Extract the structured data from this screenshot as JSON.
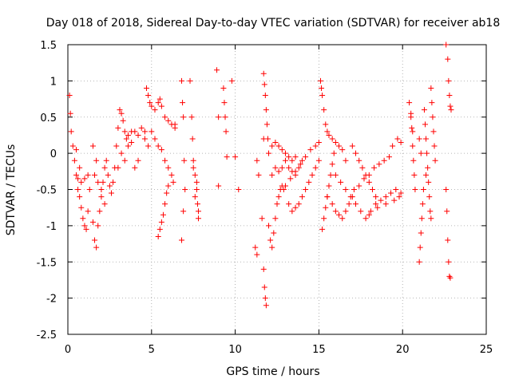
{
  "chart_data": {
    "type": "scatter",
    "title": "Day 018 of 2018, Sidereal Day-to-day VTEC variation (SDTVAR) for receiver ab18",
    "xlabel": "GPS time / hours",
    "ylabel": "SDTVAR / TECUs",
    "xlim": [
      0,
      25
    ],
    "ylim": [
      -2.5,
      1.5
    ],
    "xticks": [
      0,
      5,
      10,
      15,
      20,
      25
    ],
    "xtick_labels": [
      "0",
      "5",
      "10",
      "15",
      "20",
      "25"
    ],
    "yticks": [
      -2.5,
      -2,
      -1.5,
      -1,
      -0.5,
      0,
      0.5,
      1,
      1.5
    ],
    "ytick_labels": [
      "-2.5",
      "-2",
      "-1.5",
      "-1",
      "-0.5",
      "0",
      "0.5",
      "1",
      "1.5"
    ],
    "grid": true,
    "marker": "+",
    "color": "#ff0000",
    "series": [
      {
        "name": "SDTVAR",
        "points": [
          [
            0.1,
            0.8
          ],
          [
            0.15,
            0.55
          ],
          [
            0.2,
            0.3
          ],
          [
            0.3,
            0.1
          ],
          [
            0.4,
            -0.1
          ],
          [
            0.5,
            -0.3
          ],
          [
            0.6,
            -0.5
          ],
          [
            0.7,
            -0.6
          ],
          [
            0.8,
            -0.75
          ],
          [
            0.9,
            -0.9
          ],
          [
            1.0,
            -1.0
          ],
          [
            1.1,
            -1.05
          ],
          [
            1.2,
            -0.8
          ],
          [
            1.3,
            -0.5
          ],
          [
            0.6,
            -0.35
          ],
          [
            0.8,
            -0.4
          ],
          [
            1.0,
            -0.35
          ],
          [
            1.2,
            -0.3
          ],
          [
            0.5,
            0.05
          ],
          [
            0.7,
            -0.2
          ],
          [
            1.5,
            -0.95
          ],
          [
            1.6,
            -1.2
          ],
          [
            1.7,
            -1.3
          ],
          [
            1.8,
            -1.0
          ],
          [
            1.9,
            -0.8
          ],
          [
            2.0,
            -0.6
          ],
          [
            2.1,
            -0.4
          ],
          [
            2.2,
            -0.2
          ],
          [
            2.3,
            -0.1
          ],
          [
            2.4,
            -0.3
          ],
          [
            2.5,
            -0.45
          ],
          [
            2.6,
            -0.55
          ],
          [
            1.6,
            -0.3
          ],
          [
            1.8,
            -0.4
          ],
          [
            2.0,
            -0.5
          ],
          [
            2.2,
            -0.7
          ],
          [
            1.5,
            0.1
          ],
          [
            1.7,
            -0.1
          ],
          [
            2.7,
            -0.4
          ],
          [
            2.8,
            -0.2
          ],
          [
            2.9,
            0.1
          ],
          [
            3.0,
            0.35
          ],
          [
            3.1,
            0.6
          ],
          [
            3.2,
            0.55
          ],
          [
            3.3,
            0.45
          ],
          [
            3.4,
            0.3
          ],
          [
            3.5,
            0.2
          ],
          [
            3.6,
            0.25
          ],
          [
            3.8,
            0.3
          ],
          [
            4.0,
            0.3
          ],
          [
            4.2,
            0.25
          ],
          [
            4.4,
            0.35
          ],
          [
            4.6,
            0.3
          ],
          [
            3.2,
            0.0
          ],
          [
            3.4,
            -0.1
          ],
          [
            3.6,
            0.1
          ],
          [
            3.8,
            0.15
          ],
          [
            4.0,
            -0.2
          ],
          [
            4.2,
            -0.1
          ],
          [
            3.0,
            -0.2
          ],
          [
            4.7,
            0.9
          ],
          [
            4.8,
            0.8
          ],
          [
            4.9,
            0.7
          ],
          [
            5.0,
            0.65
          ],
          [
            5.2,
            0.6
          ],
          [
            5.4,
            0.7
          ],
          [
            5.5,
            0.75
          ],
          [
            5.6,
            0.65
          ],
          [
            5.8,
            0.5
          ],
          [
            6.0,
            0.45
          ],
          [
            6.2,
            0.4
          ],
          [
            6.4,
            0.4
          ],
          [
            5.0,
            0.3
          ],
          [
            5.2,
            0.2
          ],
          [
            5.4,
            0.1
          ],
          [
            5.6,
            0.05
          ],
          [
            5.8,
            -0.1
          ],
          [
            6.0,
            -0.2
          ],
          [
            6.2,
            -0.3
          ],
          [
            6.3,
            -0.4
          ],
          [
            5.4,
            -1.15
          ],
          [
            5.5,
            -1.05
          ],
          [
            5.6,
            -0.95
          ],
          [
            5.7,
            -0.85
          ],
          [
            5.8,
            -0.7
          ],
          [
            5.9,
            -0.55
          ],
          [
            6.0,
            -0.45
          ],
          [
            4.8,
            0.1
          ],
          [
            4.6,
            0.2
          ],
          [
            6.4,
            0.35
          ],
          [
            6.8,
            1.0
          ],
          [
            6.85,
            0.7
          ],
          [
            6.9,
            0.5
          ],
          [
            6.95,
            -0.1
          ],
          [
            6.8,
            -1.2
          ],
          [
            6.9,
            -0.8
          ],
          [
            7.0,
            -0.5
          ],
          [
            7.3,
            1.0
          ],
          [
            7.4,
            0.5
          ],
          [
            7.45,
            0.2
          ],
          [
            7.5,
            -0.1
          ],
          [
            7.6,
            -0.3
          ],
          [
            7.7,
            -0.5
          ],
          [
            7.75,
            -0.7
          ],
          [
            7.8,
            -0.9
          ],
          [
            7.6,
            -0.6
          ],
          [
            7.7,
            -0.4
          ],
          [
            7.8,
            -0.8
          ],
          [
            7.5,
            -0.2
          ],
          [
            8.9,
            1.15
          ],
          [
            9.0,
            0.5
          ],
          [
            9.0,
            -0.45
          ],
          [
            9.3,
            0.9
          ],
          [
            9.35,
            0.7
          ],
          [
            9.4,
            0.5
          ],
          [
            9.45,
            0.3
          ],
          [
            9.5,
            -0.05
          ],
          [
            9.8,
            1.0
          ],
          [
            10.0,
            -0.05
          ],
          [
            10.2,
            -0.5
          ],
          [
            11.2,
            -1.3
          ],
          [
            11.3,
            -1.4
          ],
          [
            11.3,
            -0.1
          ],
          [
            11.4,
            -0.3
          ],
          [
            11.6,
            -0.9
          ],
          [
            11.7,
            -1.6
          ],
          [
            11.75,
            -1.85
          ],
          [
            11.8,
            -2.0
          ],
          [
            11.85,
            -2.1
          ],
          [
            11.7,
            1.1
          ],
          [
            11.75,
            0.95
          ],
          [
            11.8,
            0.8
          ],
          [
            11.85,
            0.6
          ],
          [
            11.9,
            0.4
          ],
          [
            11.95,
            0.2
          ],
          [
            12.0,
            0.0
          ],
          [
            11.7,
            0.2
          ],
          [
            12.0,
            -1.0
          ],
          [
            12.1,
            -1.2
          ],
          [
            12.2,
            -1.3
          ],
          [
            12.3,
            -1.1
          ],
          [
            12.4,
            -0.9
          ],
          [
            12.5,
            -0.7
          ],
          [
            12.6,
            -0.6
          ],
          [
            12.7,
            -0.5
          ],
          [
            12.8,
            -0.45
          ],
          [
            12.9,
            -0.5
          ],
          [
            13.0,
            -0.45
          ],
          [
            12.2,
            -0.3
          ],
          [
            12.4,
            -0.2
          ],
          [
            12.6,
            -0.25
          ],
          [
            12.8,
            -0.2
          ],
          [
            13.0,
            -0.1
          ],
          [
            13.2,
            -0.2
          ],
          [
            13.4,
            -0.25
          ],
          [
            13.6,
            -0.3
          ],
          [
            13.8,
            -0.2
          ],
          [
            14.0,
            -0.1
          ],
          [
            12.2,
            0.1
          ],
          [
            12.4,
            0.15
          ],
          [
            12.6,
            0.1
          ],
          [
            12.8,
            0.05
          ],
          [
            13.0,
            0.0
          ],
          [
            13.2,
            -0.05
          ],
          [
            13.4,
            -0.1
          ],
          [
            13.6,
            -0.05
          ],
          [
            13.2,
            -0.7
          ],
          [
            13.4,
            -0.8
          ],
          [
            13.6,
            -0.75
          ],
          [
            13.8,
            -0.7
          ],
          [
            14.0,
            -0.6
          ],
          [
            14.2,
            -0.5
          ],
          [
            14.4,
            -0.4
          ],
          [
            14.6,
            -0.3
          ],
          [
            14.8,
            -0.2
          ],
          [
            15.0,
            -0.1
          ],
          [
            13.0,
            -0.45
          ],
          [
            13.3,
            -0.35
          ],
          [
            13.6,
            -0.25
          ],
          [
            13.9,
            -0.15
          ],
          [
            14.2,
            -0.05
          ],
          [
            14.5,
            0.05
          ],
          [
            14.8,
            0.1
          ],
          [
            15.0,
            0.15
          ],
          [
            15.1,
            1.0
          ],
          [
            15.15,
            0.9
          ],
          [
            15.2,
            0.8
          ],
          [
            15.3,
            0.6
          ],
          [
            15.4,
            0.4
          ],
          [
            15.5,
            0.3
          ],
          [
            15.6,
            0.25
          ],
          [
            15.8,
            0.2
          ],
          [
            16.0,
            0.15
          ],
          [
            16.2,
            0.1
          ],
          [
            16.4,
            0.05
          ],
          [
            16.6,
            -0.1
          ],
          [
            15.2,
            -1.05
          ],
          [
            15.3,
            -0.9
          ],
          [
            15.4,
            -0.75
          ],
          [
            15.5,
            -0.6
          ],
          [
            15.6,
            -0.45
          ],
          [
            15.7,
            -0.3
          ],
          [
            15.8,
            -0.15
          ],
          [
            15.9,
            0.0
          ],
          [
            15.5,
            -0.6
          ],
          [
            15.8,
            -0.7
          ],
          [
            16.0,
            -0.8
          ],
          [
            16.2,
            -0.85
          ],
          [
            16.4,
            -0.9
          ],
          [
            16.6,
            -0.8
          ],
          [
            16.8,
            -0.7
          ],
          [
            17.0,
            -0.6
          ],
          [
            16.0,
            -0.3
          ],
          [
            16.3,
            -0.4
          ],
          [
            16.6,
            -0.5
          ],
          [
            16.9,
            -0.6
          ],
          [
            17.2,
            -0.7
          ],
          [
            17.5,
            -0.8
          ],
          [
            17.8,
            -0.9
          ],
          [
            18.1,
            -0.8
          ],
          [
            17.0,
            0.1
          ],
          [
            17.2,
            0.0
          ],
          [
            17.4,
            -0.1
          ],
          [
            17.6,
            -0.2
          ],
          [
            17.8,
            -0.3
          ],
          [
            18.0,
            -0.4
          ],
          [
            18.2,
            -0.5
          ],
          [
            18.4,
            -0.6
          ],
          [
            17.1,
            -0.5
          ],
          [
            17.4,
            -0.45
          ],
          [
            17.7,
            -0.35
          ],
          [
            18.0,
            -0.3
          ],
          [
            18.3,
            -0.2
          ],
          [
            18.6,
            -0.15
          ],
          [
            18.9,
            -0.1
          ],
          [
            19.2,
            -0.05
          ],
          [
            18.4,
            -0.7
          ],
          [
            18.7,
            -0.65
          ],
          [
            19.0,
            -0.6
          ],
          [
            19.3,
            -0.55
          ],
          [
            19.6,
            -0.5
          ],
          [
            19.8,
            -0.6
          ],
          [
            19.4,
            0.1
          ],
          [
            19.7,
            0.2
          ],
          [
            19.9,
            0.15
          ],
          [
            18.0,
            -0.85
          ],
          [
            18.5,
            -0.75
          ],
          [
            19.0,
            -0.7
          ],
          [
            19.5,
            -0.65
          ],
          [
            19.9,
            -0.55
          ],
          [
            20.4,
            0.7
          ],
          [
            20.5,
            0.55
          ],
          [
            20.55,
            0.35
          ],
          [
            20.6,
            0.1
          ],
          [
            20.65,
            -0.1
          ],
          [
            20.7,
            -0.3
          ],
          [
            20.75,
            -0.5
          ],
          [
            20.5,
            0.5
          ],
          [
            20.6,
            0.3
          ],
          [
            21.0,
            -1.5
          ],
          [
            21.05,
            -1.3
          ],
          [
            21.1,
            -1.1
          ],
          [
            21.15,
            -0.9
          ],
          [
            21.2,
            -0.7
          ],
          [
            21.25,
            -0.5
          ],
          [
            21.0,
            0.2
          ],
          [
            21.1,
            0.0
          ],
          [
            21.3,
            0.6
          ],
          [
            21.35,
            0.4
          ],
          [
            21.4,
            0.2
          ],
          [
            21.45,
            0.0
          ],
          [
            21.5,
            -0.2
          ],
          [
            21.55,
            -0.4
          ],
          [
            21.6,
            -0.6
          ],
          [
            21.65,
            -0.8
          ],
          [
            21.7,
            -0.9
          ],
          [
            21.4,
            -0.3
          ],
          [
            21.7,
            0.9
          ],
          [
            21.75,
            0.7
          ],
          [
            21.8,
            0.5
          ],
          [
            21.85,
            0.3
          ],
          [
            21.9,
            0.1
          ],
          [
            21.95,
            -0.1
          ],
          [
            22.6,
            1.5
          ],
          [
            22.7,
            1.3
          ],
          [
            22.75,
            1.0
          ],
          [
            22.8,
            0.8
          ],
          [
            22.85,
            0.65
          ],
          [
            22.9,
            0.6
          ],
          [
            22.6,
            -0.5
          ],
          [
            22.65,
            -0.8
          ],
          [
            22.7,
            -1.2
          ],
          [
            22.75,
            -1.5
          ],
          [
            22.8,
            -1.7
          ],
          [
            22.85,
            -1.72
          ]
        ]
      }
    ]
  }
}
